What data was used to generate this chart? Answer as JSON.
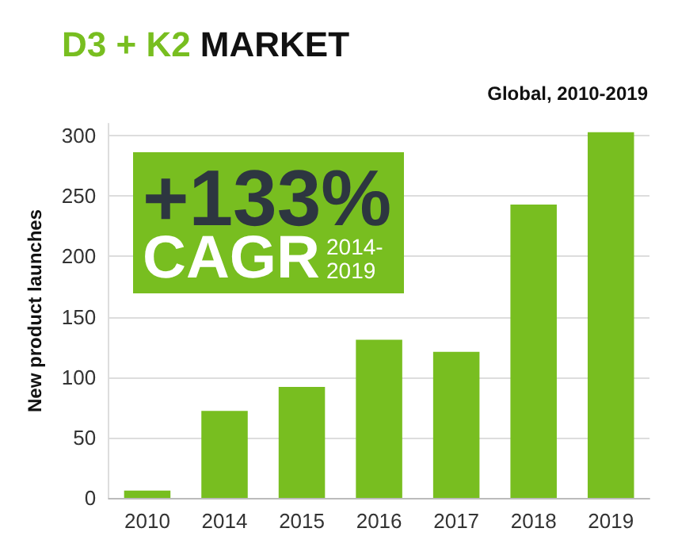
{
  "chart_data": {
    "type": "bar",
    "title": "D3 + K2 MARKET",
    "subtitle": "Global, 2010-2019",
    "ylabel": "New product launches",
    "categories": [
      "2010",
      "2014",
      "2015",
      "2016",
      "2017",
      "2018",
      "2019"
    ],
    "values": [
      6,
      72,
      92,
      131,
      121,
      243,
      303
    ],
    "color": "#78be20",
    "ylim": [
      0,
      310
    ],
    "yticks": [
      0,
      50,
      100,
      150,
      200,
      250,
      300
    ],
    "grid": "y",
    "annotations": [
      "+133%",
      "CAGR",
      "2014-\n2019"
    ]
  }
}
